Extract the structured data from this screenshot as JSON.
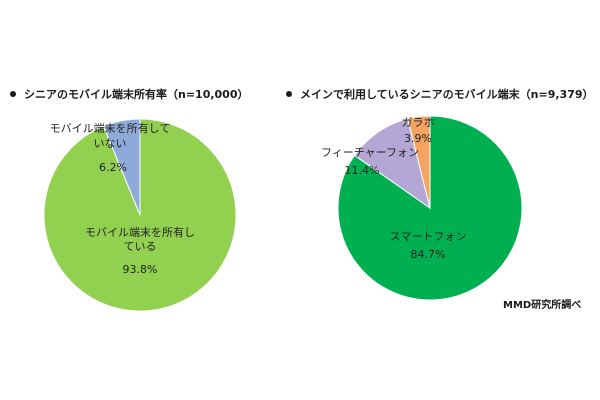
{
  "chart_data": [
    {
      "type": "pie",
      "title": "シニアのモバイル端末所有率（n=10,000）",
      "slices": [
        {
          "label_lines": [
            "モバイル端末を所有し",
            "ている"
          ],
          "value": 93.8,
          "value_label": "93.8%",
          "color": "#92d050"
        },
        {
          "label_lines": [
            "モバイル端末を所有して",
            "いない"
          ],
          "value": 6.2,
          "value_label": "6.2%",
          "color": "#8eaadb"
        }
      ]
    },
    {
      "type": "pie",
      "title": "メインで利用しているシニアのモバイル端末（n=9,379）",
      "slices": [
        {
          "label_lines": [
            "スマートフォン"
          ],
          "value": 84.7,
          "value_label": "84.7%",
          "color": "#00b050"
        },
        {
          "label_lines": [
            "フィーチャーフォン"
          ],
          "value": 11.4,
          "value_label": "11.4%",
          "color": "#b4a7d6"
        },
        {
          "label_lines": [
            "ガラホ"
          ],
          "value": 3.9,
          "value_label": "3.9%",
          "color": "#f4a460"
        }
      ]
    }
  ],
  "source": "MMD研究所調べ"
}
